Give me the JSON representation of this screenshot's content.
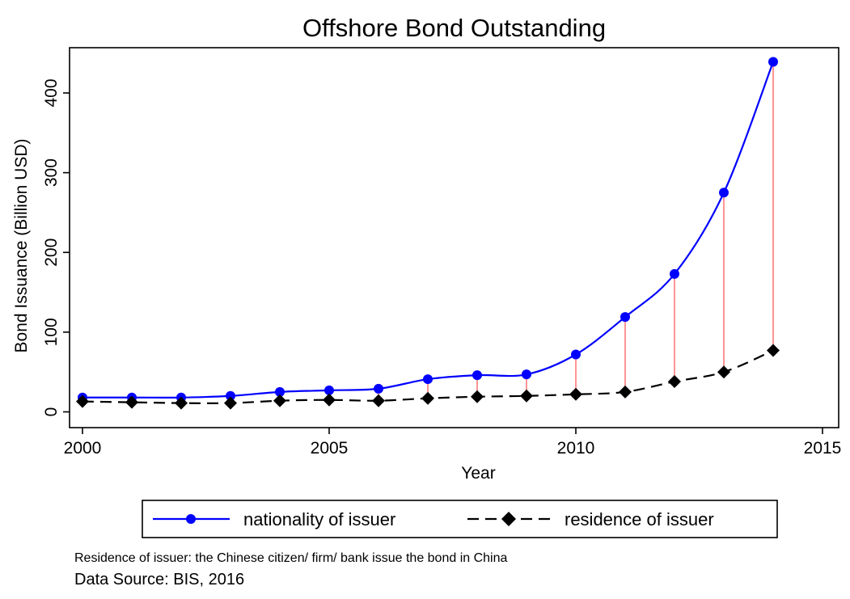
{
  "chart_data": {
    "type": "line",
    "title": "Offshore Bond Outstanding",
    "xlabel": "Year",
    "ylabel": "Bond Issuance (Billion USD)",
    "xlim": [
      2000,
      2015
    ],
    "ylim": [
      -10,
      455
    ],
    "x_ticks": [
      2000,
      2005,
      2010,
      2015
    ],
    "y_ticks": [
      0,
      100,
      200,
      300,
      400
    ],
    "grid": false,
    "legend_position": "bottom",
    "x": [
      2000,
      2001,
      2002,
      2003,
      2004,
      2005,
      2006,
      2007,
      2008,
      2009,
      2010,
      2011,
      2012,
      2013,
      2014
    ],
    "series": [
      {
        "name": "nationality of issuer",
        "values": [
          18,
          18,
          18,
          20,
          25,
          27,
          29,
          41,
          46,
          47,
          72,
          119,
          173,
          275,
          439
        ],
        "color": "#0000ff",
        "marker": "circle",
        "line_style": "solid"
      },
      {
        "name": "residence of issuer",
        "values": [
          13,
          12,
          11,
          11,
          14,
          15,
          14,
          17,
          19,
          20,
          22,
          25,
          38,
          50,
          77
        ],
        "color": "#000000",
        "marker": "diamond",
        "line_style": "dashed"
      }
    ],
    "gap_lines_color": "#ff6666",
    "note": "Residence of issuer: the Chinese citizen/ firm/ bank issue the bond in China",
    "source": "Data Source: BIS, 2016"
  }
}
